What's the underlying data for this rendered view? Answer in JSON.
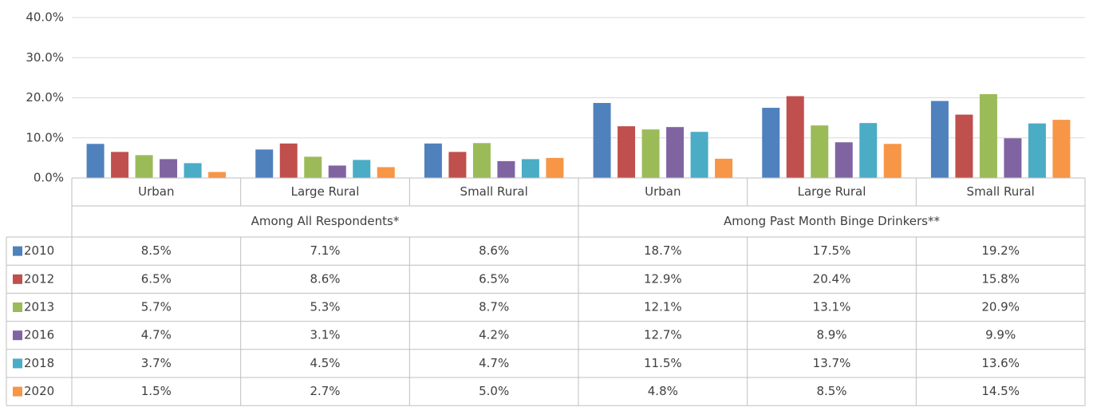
{
  "chart_data": {
    "type": "bar",
    "categories": [
      "Urban",
      "Large Rural",
      "Small Rural",
      "Urban",
      "Large Rural",
      "Small Rural"
    ],
    "group_labels": [
      "Among All Respondents*",
      "Among Past Month Binge Drinkers**"
    ],
    "ylim": [
      0,
      40
    ],
    "yticks": [
      {
        "value": 0,
        "label": "0.0%"
      },
      {
        "value": 10,
        "label": "10.0%"
      },
      {
        "value": 20,
        "label": "20.0%"
      },
      {
        "value": 30,
        "label": "30.0%"
      },
      {
        "value": 40,
        "label": "40.0%"
      }
    ],
    "grid": true,
    "series": [
      {
        "name": "2010",
        "color": "#4f81bd",
        "values": [
          8.5,
          7.1,
          8.6,
          18.7,
          17.5,
          19.2
        ],
        "value_labels": [
          "8.5%",
          "7.1%",
          "8.6%",
          "18.7%",
          "17.5%",
          "19.2%"
        ]
      },
      {
        "name": "2012",
        "color": "#c0504d",
        "values": [
          6.5,
          8.6,
          6.5,
          12.9,
          20.4,
          15.8
        ],
        "value_labels": [
          "6.5%",
          "8.6%",
          "6.5%",
          "12.9%",
          "20.4%",
          "15.8%"
        ]
      },
      {
        "name": "2013",
        "color": "#9bbb59",
        "values": [
          5.7,
          5.3,
          8.7,
          12.1,
          13.1,
          20.9
        ],
        "value_labels": [
          "5.7%",
          "5.3%",
          "8.7%",
          "12.1%",
          "13.1%",
          "20.9%"
        ]
      },
      {
        "name": "2016",
        "color": "#8064a2",
        "values": [
          4.7,
          3.1,
          4.2,
          12.7,
          8.9,
          9.9
        ],
        "value_labels": [
          "4.7%",
          "3.1%",
          "4.2%",
          "12.7%",
          "8.9%",
          "9.9%"
        ]
      },
      {
        "name": "2018",
        "color": "#4bacc6",
        "values": [
          3.7,
          4.5,
          4.7,
          11.5,
          13.7,
          13.6
        ],
        "value_labels": [
          "3.7%",
          "4.5%",
          "4.7%",
          "11.5%",
          "13.7%",
          "13.6%"
        ]
      },
      {
        "name": "2020",
        "color": "#f79646",
        "values": [
          1.5,
          2.7,
          5.0,
          4.8,
          8.5,
          14.5
        ],
        "value_labels": [
          "1.5%",
          "2.7%",
          "5.0%",
          "4.8%",
          "8.5%",
          "14.5%"
        ]
      }
    ]
  }
}
